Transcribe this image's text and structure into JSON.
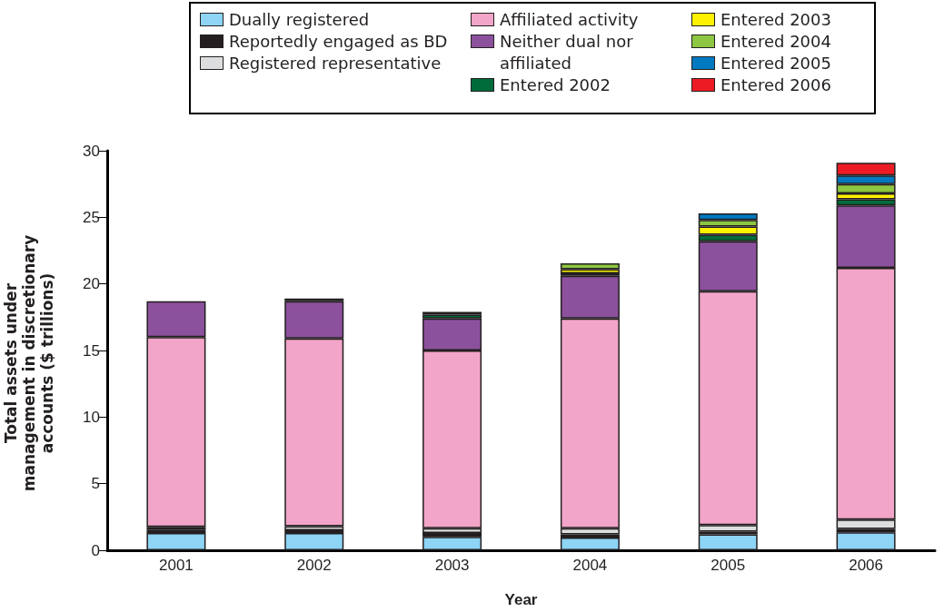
{
  "chart_data": {
    "type": "bar",
    "stacked": true,
    "xlabel": "Year",
    "ylabel": "Total assets under management in discretionary accounts ($ trillions)",
    "categories": [
      "2001",
      "2002",
      "2003",
      "2004",
      "2005",
      "2006"
    ],
    "ylim": [
      0,
      30
    ],
    "yticks": [
      0,
      5,
      10,
      15,
      20,
      25,
      30
    ],
    "grid": false,
    "legend": "top",
    "series": [
      {
        "name": "Dually registered",
        "color": "#8dd4f5",
        "values": [
          1.3,
          1.3,
          1.0,
          0.95,
          1.2,
          1.35
        ]
      },
      {
        "name": "Reportedly engaged as BD",
        "color": "#231f20",
        "values": [
          0.25,
          0.2,
          0.3,
          0.25,
          0.2,
          0.25
        ]
      },
      {
        "name": "Registered representative",
        "color": "#dcdddf",
        "values": [
          0.2,
          0.3,
          0.35,
          0.45,
          0.5,
          0.7
        ]
      },
      {
        "name": "Affiliated activity",
        "color": "#f2a5c8",
        "values": [
          14.25,
          14.1,
          13.35,
          15.75,
          17.55,
          18.9
        ]
      },
      {
        "name": "Neither dual nor affiliated",
        "color": "#8c519c",
        "values": [
          2.7,
          2.8,
          2.4,
          3.2,
          3.75,
          4.7
        ]
      },
      {
        "name": "Entered 2002",
        "color": "#006b3a",
        "values": [
          null,
          0.2,
          0.3,
          0.2,
          0.5,
          0.45
        ]
      },
      {
        "name": "Entered 2003",
        "color": "#fff200",
        "values": [
          null,
          null,
          0.2,
          0.3,
          0.6,
          0.45
        ]
      },
      {
        "name": "Entered 2004",
        "color": "#8dc641",
        "values": [
          null,
          null,
          null,
          0.45,
          0.5,
          0.7
        ]
      },
      {
        "name": "Entered 2005",
        "color": "#0079c1",
        "values": [
          null,
          null,
          null,
          null,
          0.5,
          0.65
        ]
      },
      {
        "name": "Entered 2006",
        "color": "#ed1c24",
        "values": [
          null,
          null,
          null,
          null,
          null,
          0.95
        ]
      }
    ]
  }
}
